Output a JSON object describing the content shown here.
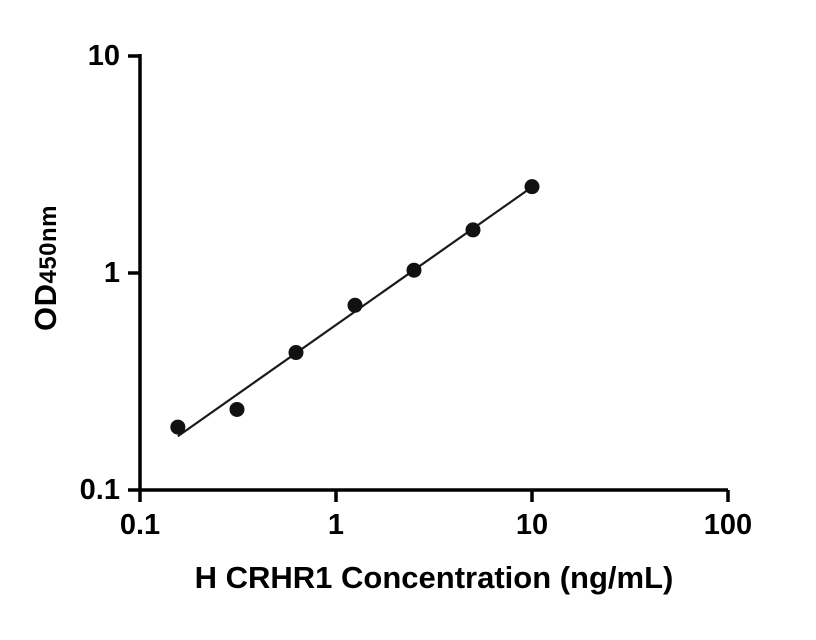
{
  "chart_data": {
    "type": "scatter",
    "title": "",
    "xlabel": "H CRHR1 Concentration (ng/mL)",
    "ylabel": "OD450nm",
    "ylabel_main": "OD",
    "ylabel_sub": "450nm",
    "x_scale": "log",
    "y_scale": "log",
    "xlim": [
      0.1,
      100
    ],
    "ylim": [
      0.1,
      10
    ],
    "x_ticks": [
      {
        "value": 0.1,
        "label": "0.1"
      },
      {
        "value": 1,
        "label": "1"
      },
      {
        "value": 10,
        "label": "10"
      },
      {
        "value": 100,
        "label": "100"
      }
    ],
    "y_ticks": [
      {
        "value": 0.1,
        "label": "0.1"
      },
      {
        "value": 1,
        "label": "1"
      },
      {
        "value": 10,
        "label": "10"
      }
    ],
    "grid": false,
    "legend_position": "none",
    "trendline": "linear fit in log-log space through data points",
    "axis_color": "#000000",
    "line_color": "#1a1a1a",
    "marker_color": "#111111",
    "points": [
      {
        "x": 0.156,
        "y": 0.195
      },
      {
        "x": 0.3125,
        "y": 0.235
      },
      {
        "x": 0.625,
        "y": 0.43
      },
      {
        "x": 1.25,
        "y": 0.71
      },
      {
        "x": 2.5,
        "y": 1.03
      },
      {
        "x": 5,
        "y": 1.58
      },
      {
        "x": 10,
        "y": 2.5
      }
    ]
  }
}
